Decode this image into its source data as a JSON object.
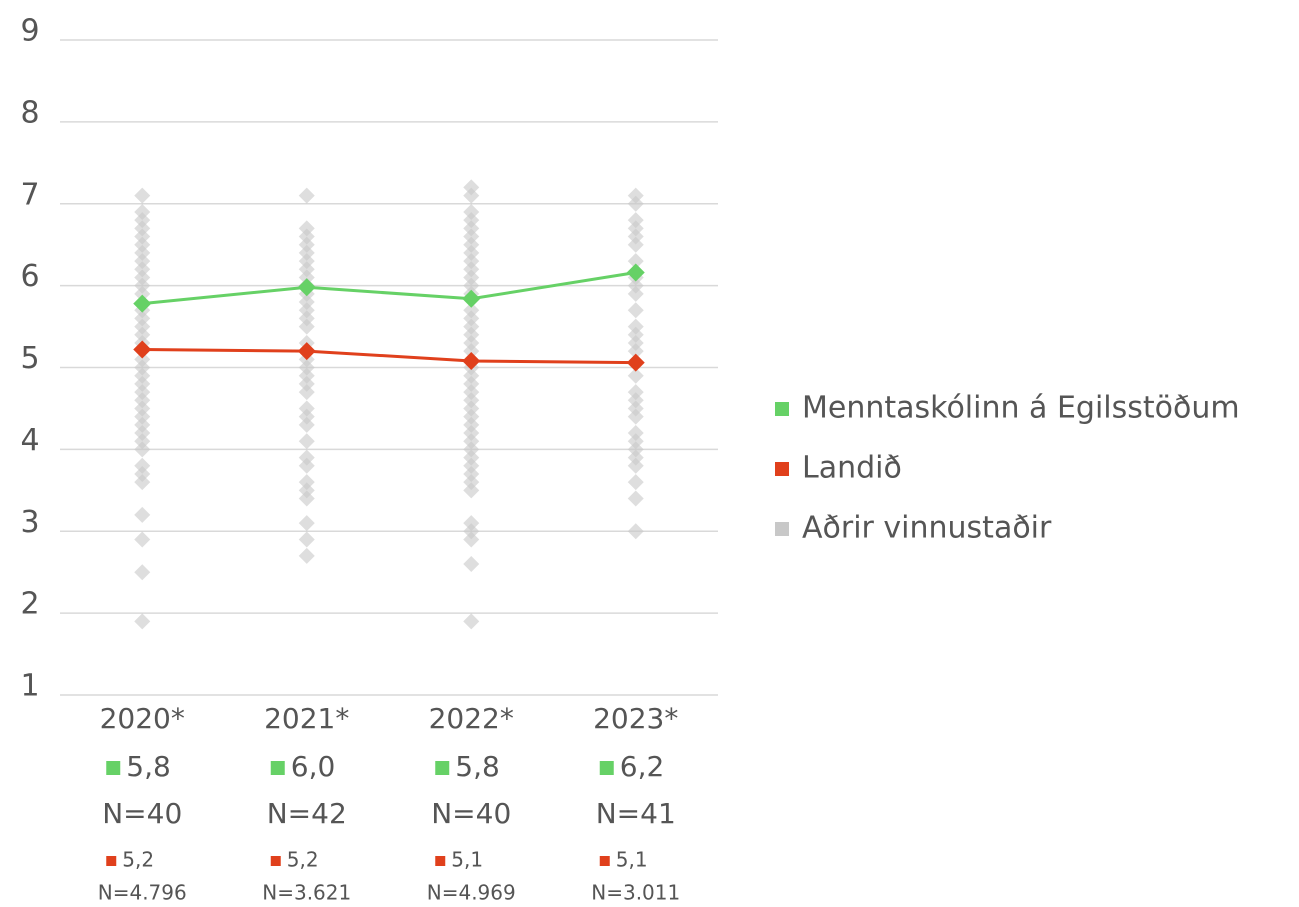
{
  "chart_data": {
    "type": "line",
    "categories": [
      "2020*",
      "2021*",
      "2022*",
      "2023*"
    ],
    "ylim": [
      1,
      9
    ],
    "yticks": [
      1,
      2,
      3,
      4,
      5,
      6,
      7,
      8,
      9
    ],
    "grid": true,
    "legend": "right",
    "series": [
      {
        "name": "Menntaskólinn á Egilsstöðum",
        "color": "#66d166",
        "values": [
          5.78,
          5.98,
          5.84,
          6.16
        ],
        "value_labels": [
          "5,8",
          "6,0",
          "5,8",
          "6,2"
        ],
        "n_labels": [
          "N=40",
          "N=42",
          "N=40",
          "N=41"
        ]
      },
      {
        "name": "Landið",
        "color": "#e0401c",
        "values": [
          5.22,
          5.2,
          5.08,
          5.06
        ],
        "value_labels": [
          "5,2",
          "5,2",
          "5,1",
          "5,1"
        ],
        "n_labels": [
          "N=4.796",
          "N=3.621",
          "N=4.969",
          "N=3.011"
        ]
      },
      {
        "name": "Aðrir vinnustaðir",
        "color": "#c8c8c8",
        "scatter": true,
        "values": [
          [
            7.1,
            6.9,
            6.8,
            6.7,
            6.6,
            6.5,
            6.4,
            6.3,
            6.2,
            6.1,
            6.0,
            5.9,
            5.7,
            5.6,
            5.5,
            5.4,
            5.3,
            5.1,
            5.0,
            4.9,
            4.8,
            4.7,
            4.6,
            4.5,
            4.4,
            4.3,
            4.2,
            4.1,
            4.0,
            3.8,
            3.7,
            3.6,
            3.2,
            2.9,
            2.5,
            1.9
          ],
          [
            7.1,
            6.7,
            6.6,
            6.5,
            6.4,
            6.3,
            6.2,
            6.1,
            6.0,
            5.9,
            5.8,
            5.7,
            5.6,
            5.5,
            5.3,
            5.1,
            5.0,
            4.9,
            4.8,
            4.7,
            4.5,
            4.4,
            4.3,
            4.1,
            3.9,
            3.8,
            3.6,
            3.5,
            3.4,
            3.1,
            2.9,
            2.7
          ],
          [
            7.2,
            7.1,
            6.9,
            6.8,
            6.7,
            6.6,
            6.5,
            6.4,
            6.3,
            6.2,
            6.1,
            6.0,
            5.9,
            5.7,
            5.6,
            5.5,
            5.4,
            5.3,
            5.2,
            5.0,
            4.9,
            4.8,
            4.7,
            4.6,
            4.5,
            4.4,
            4.3,
            4.2,
            4.1,
            4.0,
            3.9,
            3.8,
            3.7,
            3.6,
            3.5,
            3.1,
            3.0,
            2.9,
            2.6,
            1.9
          ],
          [
            7.1,
            7.0,
            6.8,
            6.7,
            6.6,
            6.5,
            6.3,
            6.1,
            6.0,
            5.9,
            5.7,
            5.5,
            5.4,
            5.3,
            5.2,
            4.9,
            4.7,
            4.6,
            4.5,
            4.4,
            4.2,
            4.1,
            4.0,
            3.9,
            3.8,
            3.6,
            3.4,
            3.0
          ]
        ]
      }
    ]
  }
}
